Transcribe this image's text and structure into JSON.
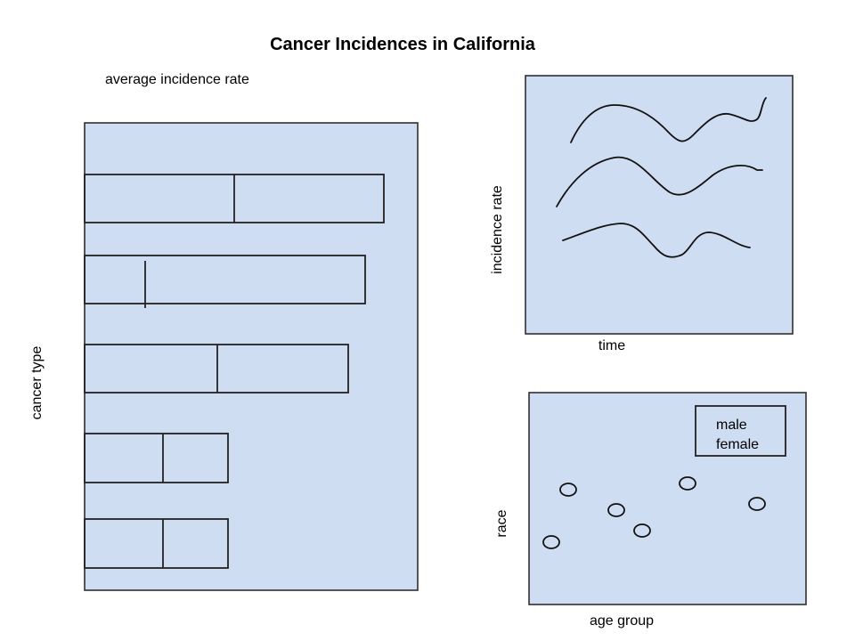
{
  "title": "Cancer Incidences in California",
  "bar_chart": {
    "top_label": "average incidence rate",
    "side_label": "cancer type"
  },
  "line_chart": {
    "ylabel": "incidence rate",
    "xlabel": "time"
  },
  "scatter_chart": {
    "ylabel": "race",
    "xlabel": "age group",
    "legend": [
      "male",
      "female"
    ]
  }
}
